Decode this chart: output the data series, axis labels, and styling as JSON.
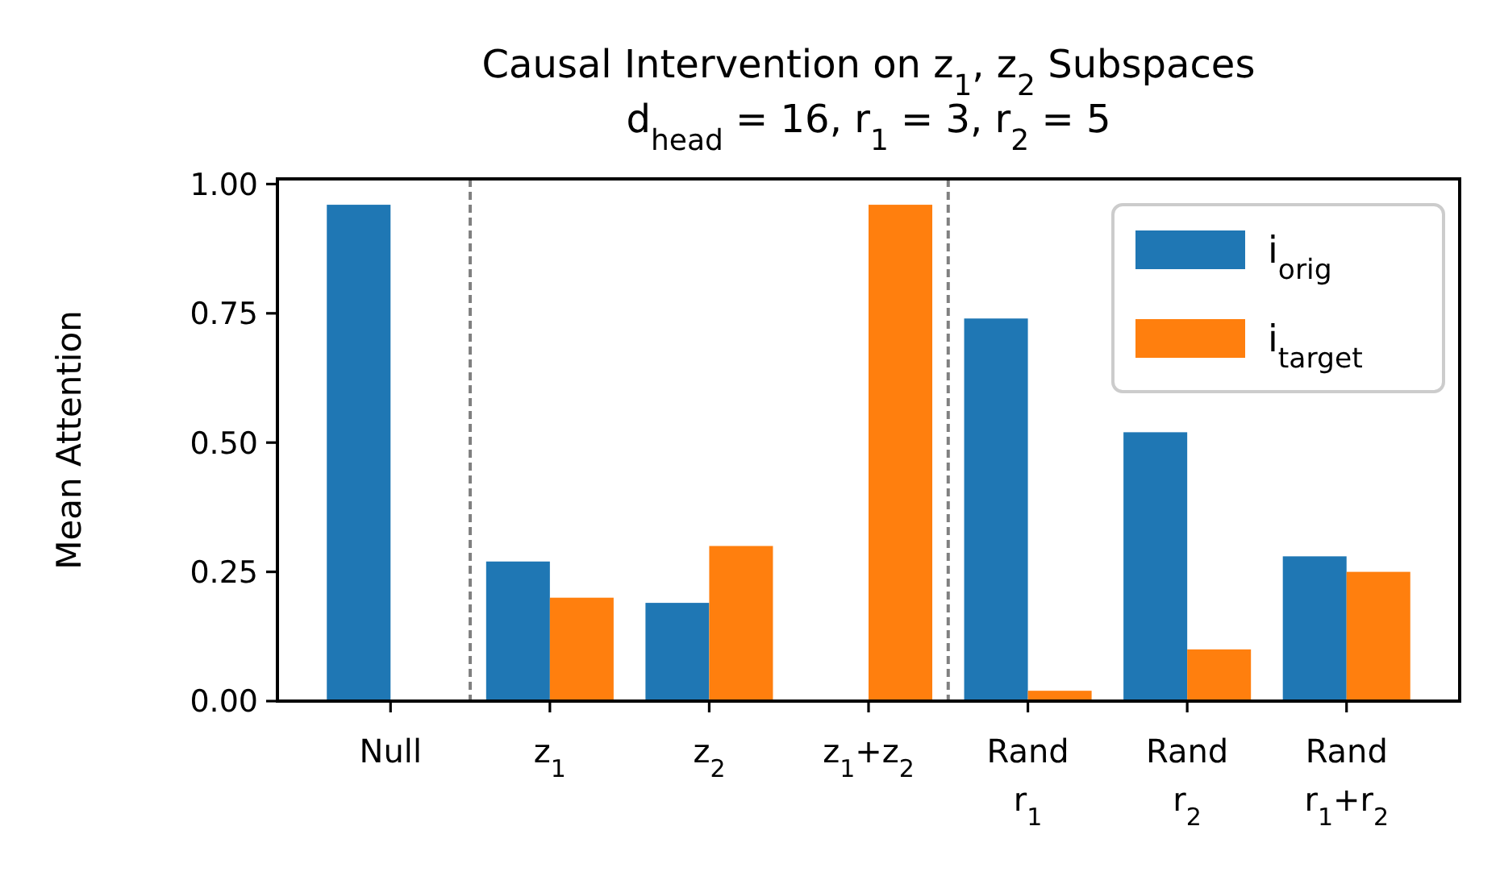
{
  "chart_data": {
    "type": "bar",
    "title": "Causal Intervention on z$_{1}$, z$_{2}$ Subspaces",
    "subtitle": "d$_{head}$ = 16, r$_{1}$ = 3, r$_{2}$ = 5",
    "ylabel": "Mean Attention",
    "categories": [
      "Null",
      "z$_{1}$",
      "z$_{2}$",
      "z$_{1}$+z$_{2}$",
      "Rand\nr$_{1}$",
      "Rand\nr$_{2}$",
      "Rand\nr$_{1}$+r$_{2}$"
    ],
    "series": [
      {
        "name": "i$_{orig}$",
        "color": "#1f77b4",
        "values": [
          0.96,
          0.27,
          0.19,
          0,
          0.74,
          0.52,
          0.28
        ]
      },
      {
        "name": "i$_{target}$",
        "color": "#ff7f0e",
        "values": [
          0,
          0.2,
          0.3,
          0.96,
          0.02,
          0.1,
          0.25
        ]
      }
    ],
    "ylim": [
      0,
      1.01
    ],
    "yticks": [
      {
        "value": 0,
        "label": "0.00"
      },
      {
        "value": 0.25,
        "label": "0.25"
      },
      {
        "value": 0.5,
        "label": "0.50"
      },
      {
        "value": 0.75,
        "label": "0.75"
      },
      {
        "value": 1,
        "label": "1.00"
      }
    ],
    "legend": "top right",
    "grid": false
  }
}
